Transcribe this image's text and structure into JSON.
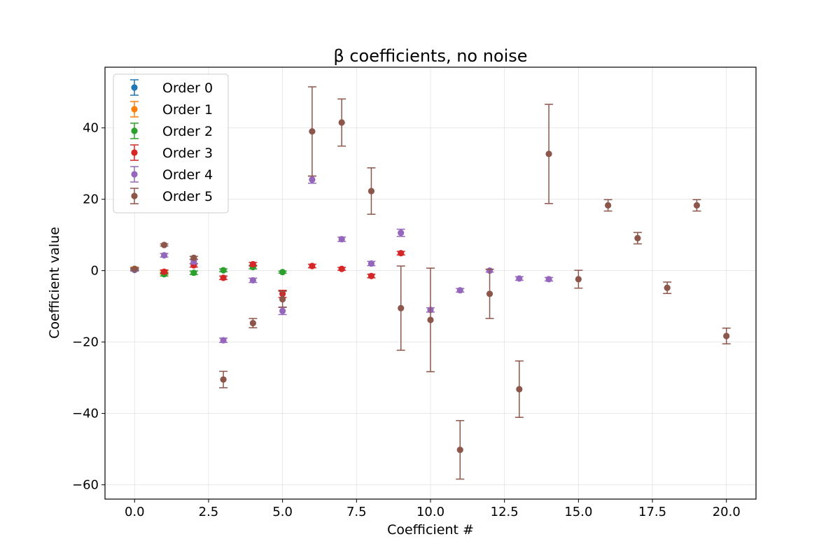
{
  "chart_data": {
    "type": "scatter",
    "title": "β coefficients, no noise",
    "xlabel": "Coefficient #",
    "ylabel": "Coefficient value",
    "xlim": [
      -1,
      21
    ],
    "ylim": [
      -64,
      57
    ],
    "xticks": [
      0,
      2.5,
      5,
      7.5,
      10,
      12.5,
      15,
      17.5,
      20
    ],
    "xtick_labels": [
      "0.0",
      "2.5",
      "5.0",
      "7.5",
      "10.0",
      "12.5",
      "15.0",
      "17.5",
      "20.0"
    ],
    "yticks": [
      -60,
      -40,
      -20,
      0,
      20,
      40
    ],
    "ytick_labels": [
      "−60",
      "−40",
      "−20",
      "0",
      "20",
      "40"
    ],
    "grid": true,
    "legend_position": "top-left",
    "error_bars": true,
    "series": [
      {
        "name": "Order 0",
        "color": "#1f77b4",
        "x": [
          0
        ],
        "y": [
          0.2
        ],
        "err": [
          0.3
        ]
      },
      {
        "name": "Order 1",
        "color": "#ff7f0e",
        "x": [
          0,
          1
        ],
        "y": [
          0.5,
          -0.5
        ],
        "err": [
          0.5,
          0.5
        ]
      },
      {
        "name": "Order 2",
        "color": "#2ca02c",
        "x": [
          0,
          1,
          2,
          3,
          4,
          5
        ],
        "y": [
          0.3,
          -1.0,
          -0.6,
          0.1,
          1.0,
          -0.4
        ],
        "err": [
          0.3,
          0.5,
          0.5,
          0.4,
          0.5,
          0.3
        ]
      },
      {
        "name": "Order 3",
        "color": "#d62728",
        "x": [
          0,
          1,
          2,
          3,
          4,
          5,
          6,
          7,
          8,
          9
        ],
        "y": [
          0.3,
          -0.3,
          1.5,
          -2.0,
          1.8,
          -6.5,
          1.3,
          0.5,
          -1.5,
          4.9
        ],
        "err": [
          0.3,
          0.5,
          0.5,
          0.5,
          0.5,
          1.0,
          0.5,
          0.4,
          0.5,
          0.5
        ]
      },
      {
        "name": "Order 4",
        "color": "#9467bd",
        "x": [
          0,
          1,
          2,
          3,
          4,
          5,
          6,
          7,
          8,
          9,
          10,
          11,
          12,
          13,
          14
        ],
        "y": [
          0.3,
          4.3,
          2.5,
          -19.5,
          -2.7,
          -11.3,
          25.5,
          8.8,
          2.0,
          10.6,
          -11.0,
          -5.5,
          0.0,
          -2.2,
          -2.4
        ],
        "err": [
          0.3,
          0.5,
          0.6,
          0.6,
          0.6,
          1.0,
          1.0,
          0.6,
          0.6,
          1.0,
          0.6,
          0.5,
          0.4,
          0.5,
          0.5
        ]
      },
      {
        "name": "Order 5",
        "color": "#8c564b",
        "x": [
          0,
          1,
          2,
          3,
          4,
          5,
          6,
          7,
          8,
          9,
          10,
          11,
          12,
          13,
          14,
          15,
          16,
          17,
          18,
          19,
          20
        ],
        "y": [
          0.5,
          7.2,
          3.6,
          -30.5,
          -14.7,
          -8.0,
          39.0,
          41.5,
          22.3,
          -10.5,
          -13.8,
          -50.2,
          -6.5,
          -33.2,
          32.7,
          -2.4,
          18.3,
          9.1,
          -4.8,
          18.3,
          -18.3
        ],
        "err": [
          0.3,
          0.3,
          0.4,
          2.3,
          1.3,
          2.2,
          12.5,
          6.6,
          6.5,
          11.8,
          14.5,
          8.2,
          6.9,
          7.9,
          13.9,
          2.5,
          1.6,
          1.6,
          1.6,
          1.6,
          2.2
        ]
      }
    ]
  }
}
